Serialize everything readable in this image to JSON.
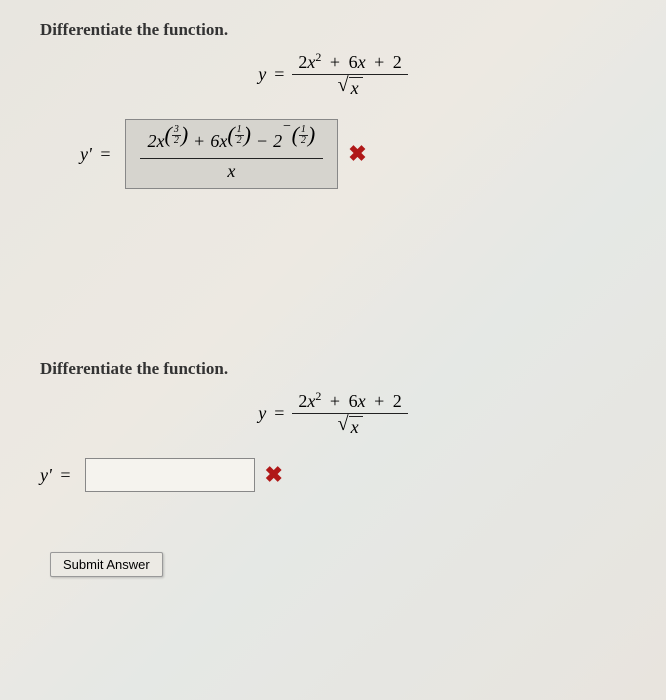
{
  "problem1": {
    "prompt": "Differentiate the function.",
    "lhs_y": "y",
    "eq": "=",
    "numerator_terms": {
      "a": "2",
      "xvar": "x",
      "sq": "2",
      "plus1": "+",
      "b": "6",
      "plus2": "+",
      "c": "2"
    },
    "denom_sqrt_var": "x",
    "answer_lhs": "y'",
    "answer": {
      "t1_coef": "2",
      "t1_var": "x",
      "t1_exp_n": "3",
      "t1_exp_d": "2",
      "op1": "+",
      "t2_coef": "6",
      "t2_var": "x",
      "t2_exp_n": "1",
      "t2_exp_d": "2",
      "op2": "−",
      "t3_coef": "2",
      "t3_neg": "−",
      "t3_exp_n": "1",
      "t3_exp_d": "2",
      "denom": "x"
    },
    "mark": "✖"
  },
  "problem2": {
    "prompt": "Differentiate the function.",
    "lhs_y": "y",
    "eq": "=",
    "numerator_terms": {
      "a": "2",
      "xvar": "x",
      "sq": "2",
      "plus1": "+",
      "b": "6",
      "plus2": "+",
      "c": "2"
    },
    "denom_sqrt_var": "x",
    "answer_lhs": "y'",
    "eq2": "=",
    "mark": "✖"
  },
  "submit_label": "Submit Answer",
  "colors": {
    "text": "#333333",
    "wrong_mark": "#b01818",
    "box_bg": "#d6d4ce",
    "box_border": "#888888"
  }
}
